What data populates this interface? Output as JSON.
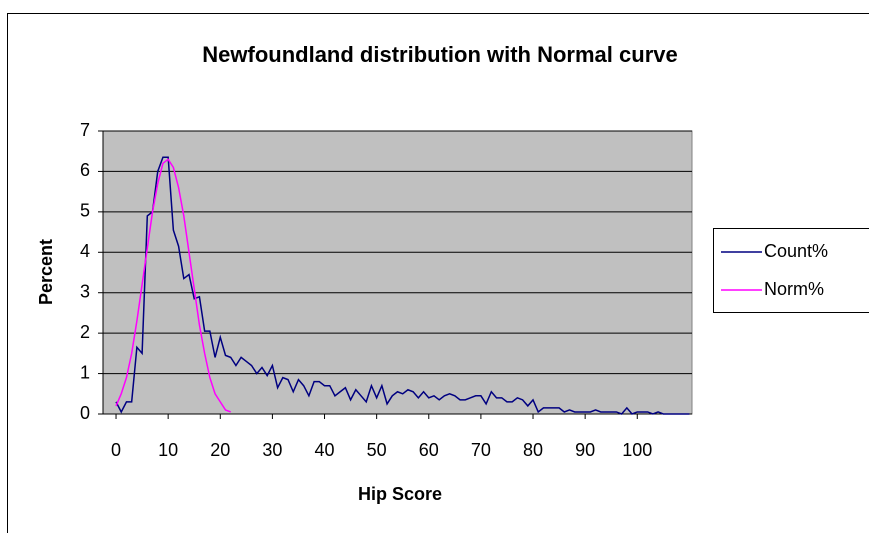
{
  "chart_data": {
    "type": "line",
    "title": "Newfoundland distribution with Normal curve",
    "x_label": "Hip Score",
    "y_label": "Percent",
    "x": [
      0,
      1,
      2,
      3,
      4,
      5,
      6,
      7,
      8,
      9,
      10,
      11,
      12,
      13,
      14,
      15,
      16,
      17,
      18,
      19,
      20,
      21,
      22,
      23,
      24,
      25,
      26,
      27,
      28,
      29,
      30,
      31,
      32,
      33,
      34,
      35,
      36,
      37,
      38,
      39,
      40,
      41,
      42,
      43,
      44,
      45,
      46,
      47,
      48,
      49,
      50,
      51,
      52,
      53,
      54,
      55,
      56,
      57,
      58,
      59,
      60,
      61,
      62,
      63,
      64,
      65,
      66,
      67,
      68,
      69,
      70,
      71,
      72,
      73,
      74,
      75,
      76,
      77,
      78,
      79,
      80,
      81,
      82,
      83,
      84,
      85,
      86,
      87,
      88,
      89,
      90,
      91,
      92,
      93,
      94,
      95,
      96,
      97,
      98,
      99,
      100,
      101,
      102,
      103,
      104,
      105,
      106,
      107,
      108,
      109,
      110
    ],
    "series": [
      {
        "name": "Count%",
        "color": "#000080",
        "values": [
          0.3,
          0.05,
          0.3,
          0.3,
          1.65,
          1.5,
          4.9,
          5.0,
          6.0,
          6.35,
          6.35,
          4.55,
          4.15,
          3.35,
          3.45,
          2.85,
          2.9,
          2.05,
          2.05,
          1.4,
          1.9,
          1.45,
          1.4,
          1.2,
          1.4,
          1.3,
          1.2,
          1.0,
          1.15,
          0.95,
          1.2,
          0.65,
          0.9,
          0.85,
          0.55,
          0.85,
          0.7,
          0.45,
          0.8,
          0.8,
          0.7,
          0.7,
          0.45,
          0.55,
          0.65,
          0.35,
          0.6,
          0.45,
          0.3,
          0.7,
          0.4,
          0.7,
          0.25,
          0.45,
          0.55,
          0.5,
          0.6,
          0.55,
          0.4,
          0.55,
          0.4,
          0.45,
          0.35,
          0.45,
          0.5,
          0.45,
          0.35,
          0.35,
          0.4,
          0.45,
          0.45,
          0.25,
          0.55,
          0.4,
          0.4,
          0.3,
          0.3,
          0.4,
          0.35,
          0.2,
          0.35,
          0.05,
          0.15,
          0.15,
          0.15,
          0.15,
          0.05,
          0.1,
          0.05,
          0.05,
          0.05,
          0.05,
          0.1,
          0.05,
          0.05,
          0.05,
          0.05,
          0.0,
          0.15,
          0.0,
          0.05,
          0.05,
          0.05,
          0.0,
          0.05,
          0.0,
          0.0,
          0.0,
          0.0,
          0.0,
          0.0
        ]
      },
      {
        "name": "Norm%",
        "color": "#ff00ff",
        "values": [
          0.2,
          0.5,
          0.9,
          1.5,
          2.3,
          3.2,
          4.1,
          5.0,
          5.7,
          6.2,
          6.3,
          6.1,
          5.6,
          4.9,
          4.0,
          3.1,
          2.2,
          1.5,
          0.9,
          0.5,
          0.3,
          0.1,
          0.05,
          null,
          null,
          null,
          null,
          null,
          null,
          null,
          null,
          null,
          null,
          null,
          null,
          null,
          null,
          null,
          null,
          null,
          null,
          null,
          null,
          null,
          null,
          null,
          null,
          null,
          null,
          null,
          null,
          null,
          null,
          null,
          null,
          null,
          null,
          null,
          null,
          null,
          null,
          null,
          null,
          null,
          null,
          null,
          null,
          null,
          null,
          null,
          null,
          null,
          null,
          null,
          null,
          null,
          null,
          null,
          null,
          null,
          null,
          null,
          null,
          null,
          null,
          null,
          null,
          null,
          null,
          null,
          null,
          null,
          null,
          null,
          null,
          null,
          null,
          null,
          null,
          null,
          null,
          null,
          null,
          null,
          null,
          null,
          null,
          null,
          null,
          null,
          null
        ]
      }
    ],
    "xlim": [
      -2.5,
      110.5
    ],
    "xticks": [
      0,
      10,
      20,
      30,
      40,
      50,
      60,
      70,
      80,
      90,
      100
    ],
    "ylim": [
      0,
      7
    ],
    "yticks": [
      0,
      1,
      2,
      3,
      4,
      5,
      6,
      7
    ],
    "grid": true,
    "plot_background": "#c0c0c0",
    "legend": "right"
  }
}
